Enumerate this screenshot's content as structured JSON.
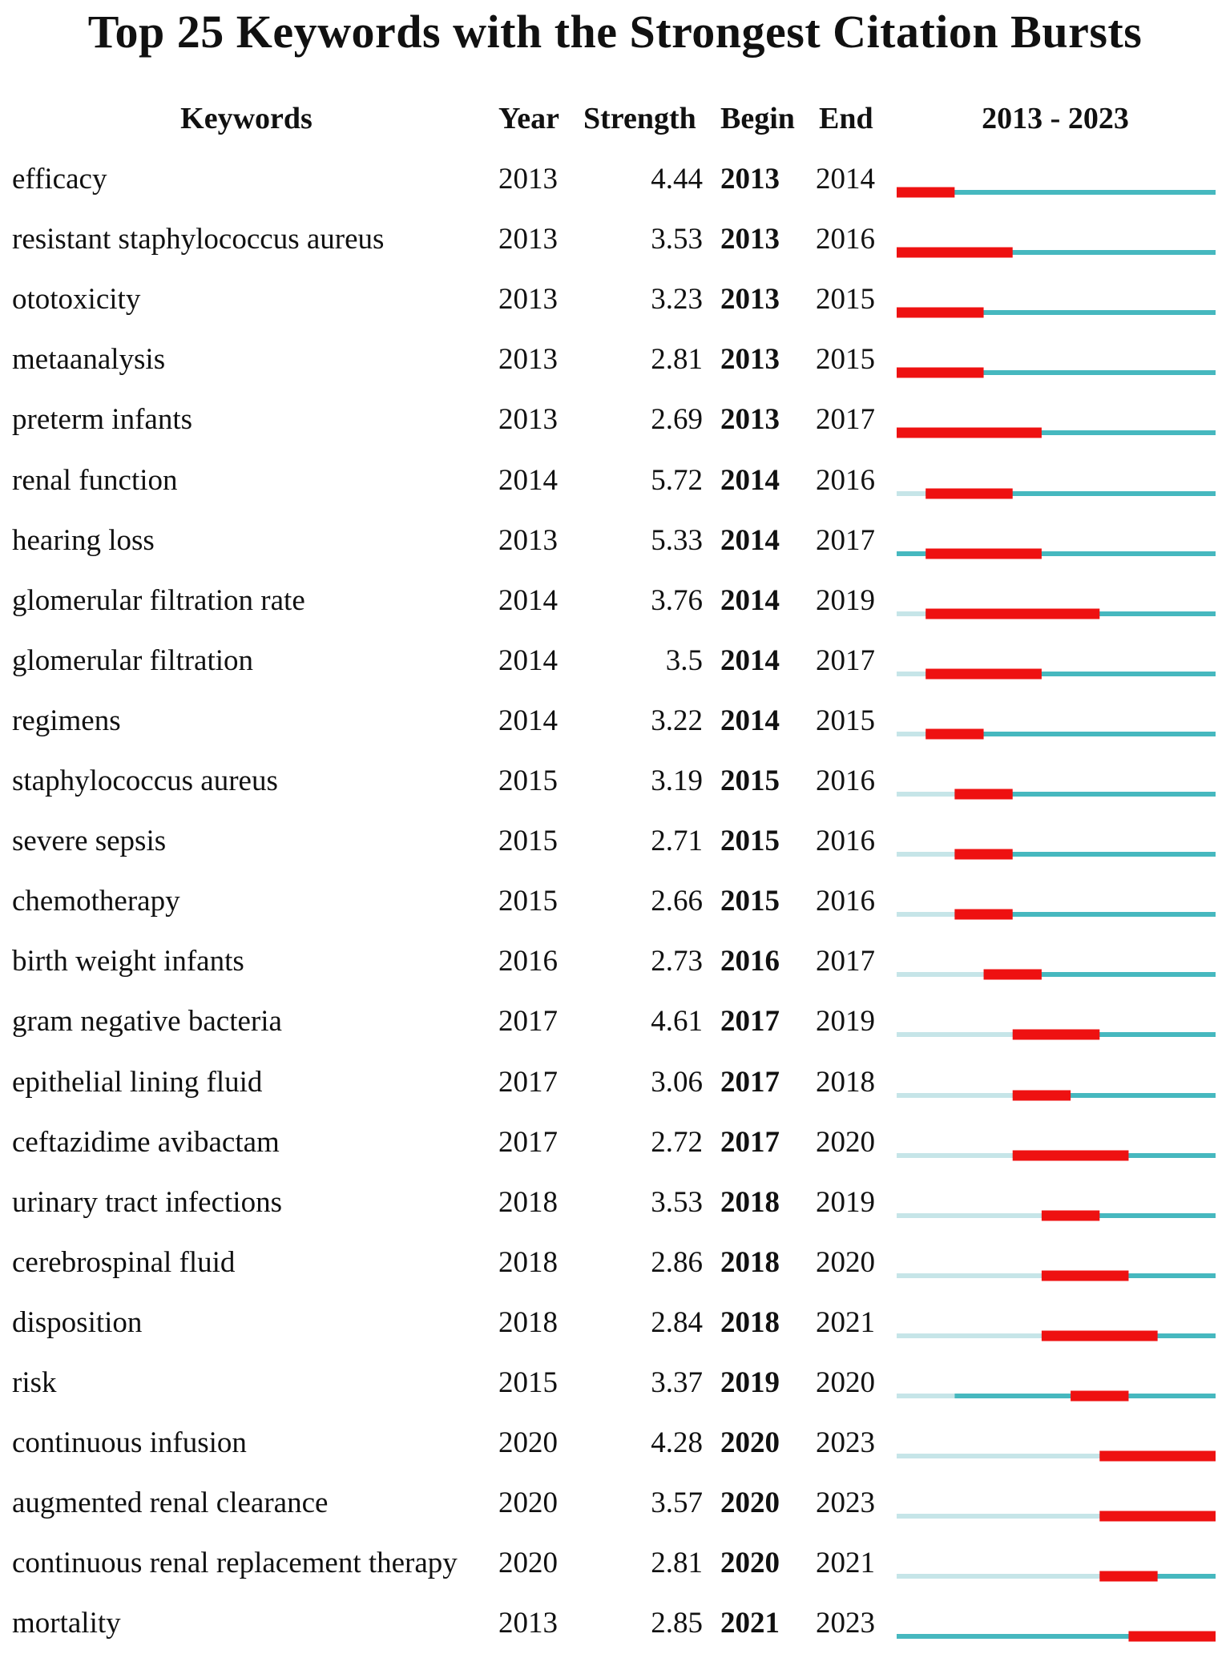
{
  "chart_data": {
    "type": "table",
    "title": "Top 25 Keywords with the Strongest Citation Bursts",
    "columns": [
      "Keywords",
      "Year",
      "Strength",
      "Begin",
      "End",
      "2013 - 2023"
    ],
    "range": [
      2013,
      2023
    ],
    "colors": {
      "burst": "#ee1111",
      "active": "#46b8bf",
      "inactive": "#c6e5e8"
    },
    "rows": [
      {
        "keyword": "efficacy",
        "year": "2013",
        "strength": "4.44",
        "begin": "2013",
        "end": "2014"
      },
      {
        "keyword": "resistant staphylococcus aureus",
        "year": "2013",
        "strength": "3.53",
        "begin": "2013",
        "end": "2016"
      },
      {
        "keyword": "ototoxicity",
        "year": "2013",
        "strength": "3.23",
        "begin": "2013",
        "end": "2015"
      },
      {
        "keyword": "metaanalysis",
        "year": "2013",
        "strength": "2.81",
        "begin": "2013",
        "end": "2015"
      },
      {
        "keyword": "preterm infants",
        "year": "2013",
        "strength": "2.69",
        "begin": "2013",
        "end": "2017"
      },
      {
        "keyword": "renal function",
        "year": "2014",
        "strength": "5.72",
        "begin": "2014",
        "end": "2016"
      },
      {
        "keyword": "hearing loss",
        "year": "2013",
        "strength": "5.33",
        "begin": "2014",
        "end": "2017"
      },
      {
        "keyword": "glomerular filtration rate",
        "year": "2014",
        "strength": "3.76",
        "begin": "2014",
        "end": "2019"
      },
      {
        "keyword": "glomerular filtration",
        "year": "2014",
        "strength": "3.5",
        "begin": "2014",
        "end": "2017"
      },
      {
        "keyword": "regimens",
        "year": "2014",
        "strength": "3.22",
        "begin": "2014",
        "end": "2015"
      },
      {
        "keyword": "staphylococcus aureus",
        "year": "2015",
        "strength": "3.19",
        "begin": "2015",
        "end": "2016"
      },
      {
        "keyword": "severe sepsis",
        "year": "2015",
        "strength": "2.71",
        "begin": "2015",
        "end": "2016"
      },
      {
        "keyword": "chemotherapy",
        "year": "2015",
        "strength": "2.66",
        "begin": "2015",
        "end": "2016"
      },
      {
        "keyword": "birth weight infants",
        "year": "2016",
        "strength": "2.73",
        "begin": "2016",
        "end": "2017"
      },
      {
        "keyword": "gram negative bacteria",
        "year": "2017",
        "strength": "4.61",
        "begin": "2017",
        "end": "2019"
      },
      {
        "keyword": "epithelial lining fluid",
        "year": "2017",
        "strength": "3.06",
        "begin": "2017",
        "end": "2018"
      },
      {
        "keyword": "ceftazidime avibactam",
        "year": "2017",
        "strength": "2.72",
        "begin": "2017",
        "end": "2020"
      },
      {
        "keyword": "urinary tract infections",
        "year": "2018",
        "strength": "3.53",
        "begin": "2018",
        "end": "2019"
      },
      {
        "keyword": "cerebrospinal fluid",
        "year": "2018",
        "strength": "2.86",
        "begin": "2018",
        "end": "2020"
      },
      {
        "keyword": "disposition",
        "year": "2018",
        "strength": "2.84",
        "begin": "2018",
        "end": "2021"
      },
      {
        "keyword": "risk",
        "year": "2015",
        "strength": "3.37",
        "begin": "2019",
        "end": "2020"
      },
      {
        "keyword": "continuous infusion",
        "year": "2020",
        "strength": "4.28",
        "begin": "2020",
        "end": "2023"
      },
      {
        "keyword": "augmented renal clearance",
        "year": "2020",
        "strength": "3.57",
        "begin": "2020",
        "end": "2023"
      },
      {
        "keyword": "continuous renal replacement therapy",
        "year": "2020",
        "strength": "2.81",
        "begin": "2020",
        "end": "2021"
      },
      {
        "keyword": "mortality",
        "year": "2013",
        "strength": "2.85",
        "begin": "2021",
        "end": "2023"
      }
    ]
  }
}
